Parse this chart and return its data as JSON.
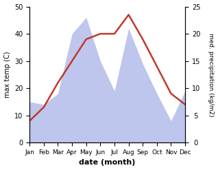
{
  "months": [
    "Jan",
    "Feb",
    "Mar",
    "Apr",
    "May",
    "Jun",
    "Jul",
    "Aug",
    "Sep",
    "Oct",
    "Nov",
    "Dec"
  ],
  "temperature": [
    8,
    13,
    22,
    30,
    38,
    40,
    40,
    47,
    38,
    28,
    18,
    14
  ],
  "precipitation_left_scale": [
    15,
    14,
    18,
    40,
    46,
    30,
    19,
    42,
    29,
    18,
    8,
    19
  ],
  "temp_color": "#c0392b",
  "precip_fill_color": "#b3bceb",
  "ylabel_left": "max temp (C)",
  "ylabel_right": "med. precipitation (kg/m2)",
  "xlabel": "date (month)",
  "ylim_left": [
    0,
    50
  ],
  "ylim_right": [
    0,
    25
  ],
  "background_color": "#ffffff"
}
